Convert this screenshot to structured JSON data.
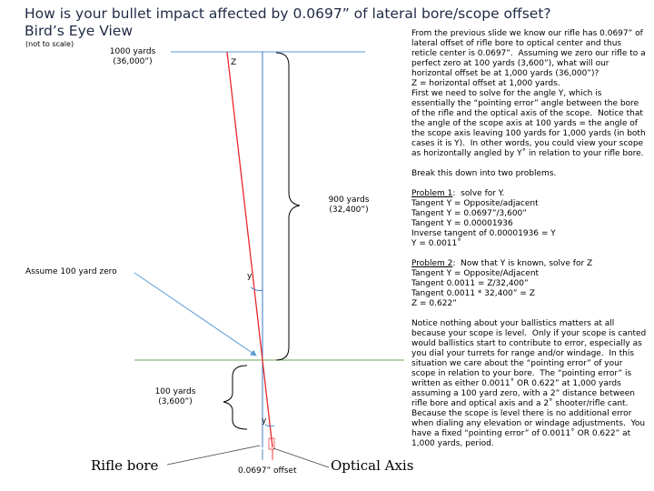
{
  "title": {
    "line1": "How is your bullet impact affected by 0.0697” of lateral bore/scope offset?",
    "line2": "Bird’s Eye View"
  },
  "subtitle": "(not to scale)",
  "diagram": {
    "label_1000_line1": "1000 yards",
    "label_1000_line2": "(36,000”)",
    "label_z": "Z",
    "label_900_line1": "900 yards",
    "label_900_line2": "(32,400”)",
    "label_zero": "Assume 100 yard zero",
    "label_y_top": "y",
    "label_y_bottom": "y",
    "label_100_line1": "100 yards",
    "label_100_line2": "(3,600”)",
    "label_rifle_bore": "Rifle bore",
    "label_optical_axis": "Optical Axis",
    "label_offset": "0.0697” offset",
    "colors": {
      "bore_line": "#e8262b",
      "optical_axis": "#3b78c4",
      "yard_lines": "#5a9bd5",
      "zero_line": "#6aa84f",
      "arrow": "#5a9bd5",
      "title": "#1f2a44"
    }
  },
  "notes": {
    "intro": "From the previous slide we know our rifle has 0.0697” of lateral offset of rifle bore to optical center and thus reticle center is 0.0697”.  Assuming we zero our rifle to a perfect zero at 100 yards (3,600”), what will our horizontal offset be at 1,000 yards (36,000”)?",
    "z_def": "Z = horizontal offset at 1,000 yards.",
    "approach": "First we need to solve for the angle Y, which is essentially the “pointing error” angle between the bore of the rifle and the optical axis of the scope.  Notice that the angle of the scope axis at 100 yards = the angle of the scope axis leaving 100 yards for 1,000 yards (in both cases it is Y).  In other words, you could view your scope as horizontally angled by Y˚ in relation to your rifle bore.",
    "break": "Break this down into two problems.",
    "p1_heading": "Problem 1",
    "p1_heading_rest": ":  solve for Y.",
    "p1_lines": [
      "Tangent Y = Opposite/adjacent",
      "Tangent Y = 0.0697”/3,600”",
      "Tangent Y = 0.00001936",
      "Inverse tangent of 0.00001936 = Y",
      "Y = 0.0011˚"
    ],
    "p2_heading": "Problem 2",
    "p2_heading_rest": ":  Now that Y is known, solve for Z",
    "p2_lines": [
      "Tangent Y = Opposite/Adjacent",
      "Tangent 0.0011 = Z/32,400”",
      "Tangent 0.0011 * 32,400” = Z",
      "Z = 0.622”"
    ],
    "conclusion": "Notice nothing about your ballistics matters at all because your scope is level.  Only if your scope is canted would ballistics start to contribute to error, especially as you dial your turrets for range and/or windage.  In this situation we care about the “pointing error” of your scope in relation to your bore.  The “pointing error” is written as either 0.0011˚ OR 0.622” at 1,000 yards assuming a 100 yard zero, with a 2” distance between rifle bore and optical axis and a 2˚ shooter/rifle cant.  Because the scope is level there is no additional error when dialing any elevation or windage adjustments.  You have a fixed “pointing error” of 0.0011˚ OR 0.622” at 1,000 yards, period."
  }
}
